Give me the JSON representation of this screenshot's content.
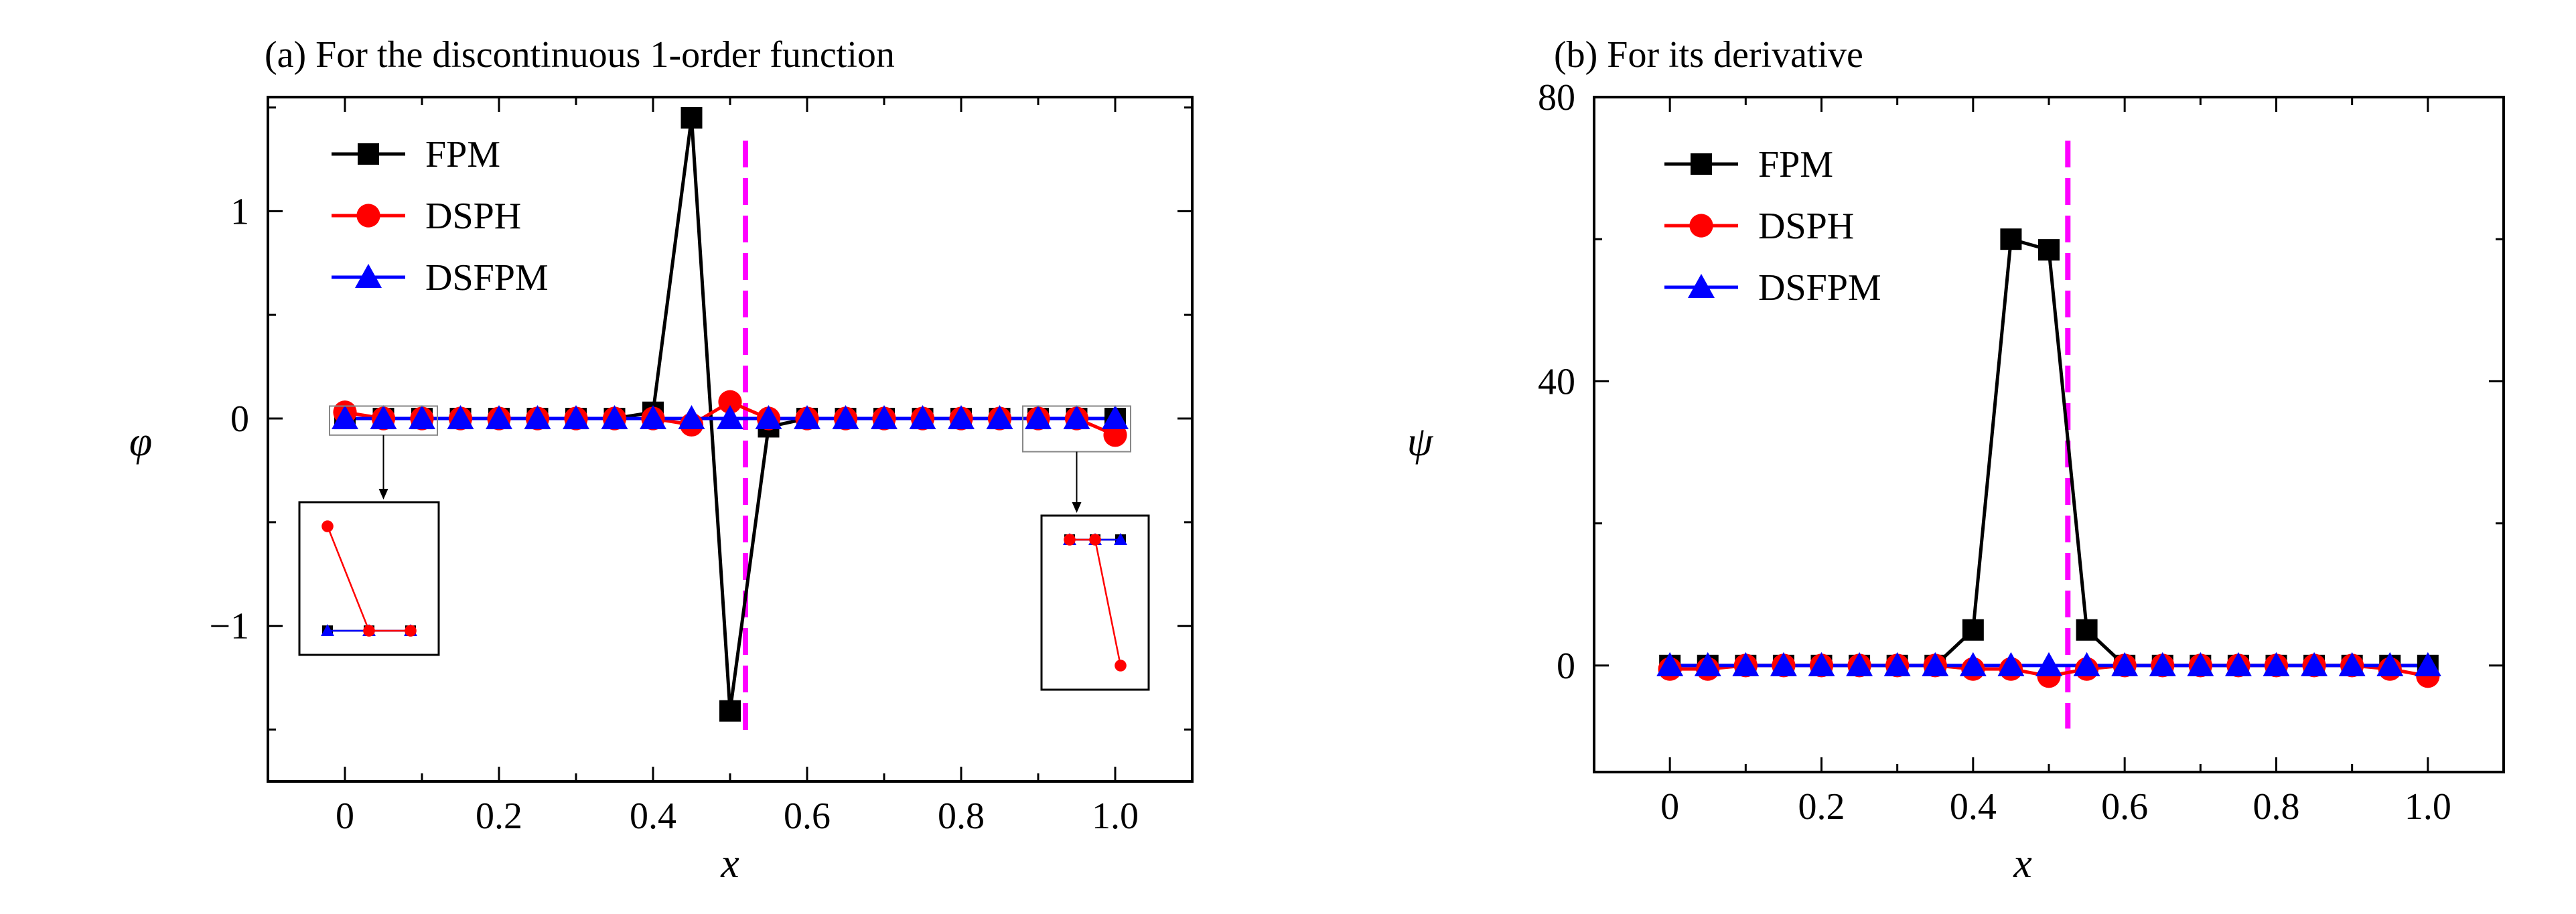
{
  "chart_data": [
    {
      "type": "line",
      "title": "(a) For the discontinuous 1-order function",
      "xlabel": "x",
      "ylabel": "φ",
      "xlim": [
        -0.1,
        1.1
      ],
      "ylim": [
        -1.75,
        1.55
      ],
      "xticks": [
        0,
        0.2,
        0.4,
        0.6,
        0.8,
        1.0
      ],
      "xtick_labels": [
        "0",
        "0.2",
        "0.4",
        "0.6",
        "0.8",
        "1.0"
      ],
      "yticks": [
        -1,
        0,
        1
      ],
      "ytick_labels": [
        "−1",
        "0",
        "1"
      ],
      "grid": false,
      "legend_position": "top-left",
      "vline_x": 0.52,
      "x": [
        0,
        0.05,
        0.1,
        0.15,
        0.2,
        0.25,
        0.3,
        0.35,
        0.4,
        0.45,
        0.5,
        0.55,
        0.6,
        0.65,
        0.7,
        0.75,
        0.8,
        0.85,
        0.9,
        0.95,
        1.0
      ],
      "series": [
        {
          "name": "FPM",
          "color": "#000000",
          "marker": "square",
          "values": [
            0,
            0,
            0,
            0,
            0,
            0,
            0,
            0,
            0.03,
            1.45,
            -1.41,
            -0.04,
            0,
            0,
            0,
            0,
            0,
            0,
            0,
            0,
            0
          ]
        },
        {
          "name": "DSPH",
          "color": "#ff0000",
          "marker": "circle",
          "values": [
            0.03,
            0,
            0,
            0,
            0,
            0,
            0,
            0,
            0,
            -0.03,
            0.08,
            0,
            0,
            0,
            0,
            0,
            0,
            0,
            0,
            0,
            -0.08
          ]
        },
        {
          "name": "DSFPM",
          "color": "#0000ff",
          "marker": "triangle",
          "values": [
            0,
            0,
            0,
            0,
            0,
            0,
            0,
            0,
            0,
            0,
            0,
            0,
            0,
            0,
            0,
            0,
            0,
            0,
            0,
            0,
            0
          ]
        }
      ]
    },
    {
      "type": "line",
      "title": "(b) For its derivative",
      "xlabel": "x",
      "ylabel": "ψ",
      "xlim": [
        -0.1,
        1.1
      ],
      "ylim": [
        -15,
        80
      ],
      "xticks": [
        0,
        0.2,
        0.4,
        0.6,
        0.8,
        1.0
      ],
      "xtick_labels": [
        "0",
        "0.2",
        "0.4",
        "0.6",
        "0.8",
        "1.0"
      ],
      "yticks": [
        0,
        40,
        80
      ],
      "ytick_labels": [
        "0",
        "40",
        "80"
      ],
      "grid": false,
      "legend_position": "top-left",
      "vline_x": 0.525,
      "x": [
        0,
        0.05,
        0.1,
        0.15,
        0.2,
        0.25,
        0.3,
        0.35,
        0.4,
        0.45,
        0.5,
        0.55,
        0.6,
        0.65,
        0.7,
        0.75,
        0.8,
        0.85,
        0.9,
        0.95,
        1.0
      ],
      "series": [
        {
          "name": "FPM",
          "color": "#000000",
          "marker": "square",
          "values": [
            0,
            0,
            0,
            0,
            0,
            0,
            0,
            0,
            5,
            60,
            58.5,
            5,
            0,
            0,
            0,
            0,
            0,
            0,
            0,
            0,
            0
          ]
        },
        {
          "name": "DSPH",
          "color": "#ff0000",
          "marker": "circle",
          "values": [
            -0.5,
            -0.5,
            0,
            0,
            0,
            0,
            0,
            0,
            -0.5,
            -0.5,
            -1.5,
            -0.5,
            0,
            0,
            0,
            0,
            0,
            0,
            0,
            -0.5,
            -1.5
          ]
        },
        {
          "name": "DSFPM",
          "color": "#0000ff",
          "marker": "triangle",
          "values": [
            0,
            0,
            0,
            0,
            0,
            0,
            0,
            0,
            0,
            0,
            0,
            0,
            0,
            0,
            0,
            0,
            0,
            0,
            0,
            0,
            0
          ]
        }
      ]
    }
  ]
}
